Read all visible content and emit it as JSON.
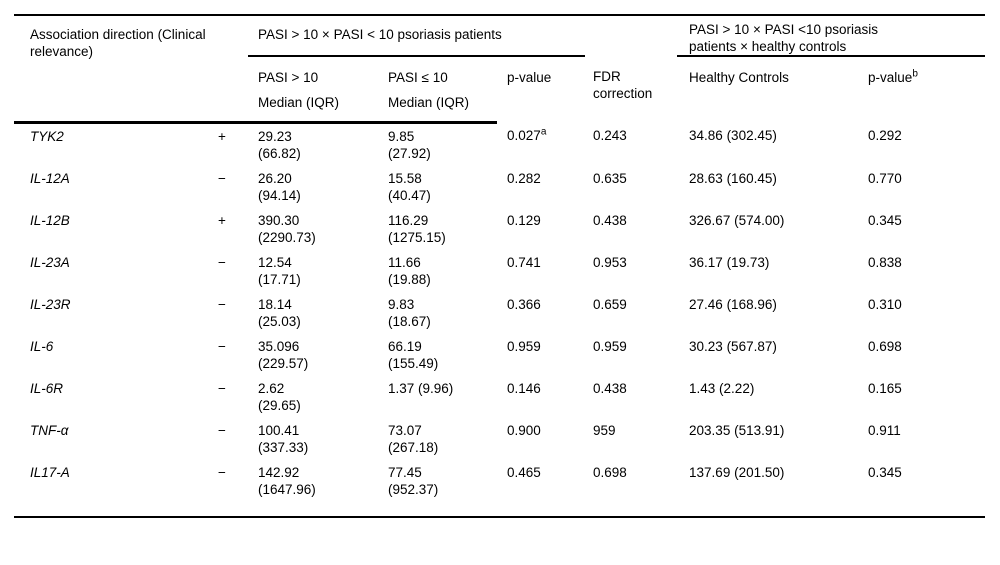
{
  "table": {
    "top_header": {
      "association": "Association direction (Clinical relevance)",
      "group_patients": "PASI > 10 × PASI < 10 psoriasis patients",
      "group_controls_l1": "PASI > 10 × PASI <10 psoriasis",
      "group_controls_l2": "patients × healthy controls"
    },
    "sub_header": {
      "pasi_gt10": "PASI > 10",
      "pasi_gt10_median": "Median (IQR)",
      "pasi_le10": "PASI ≤ 10",
      "pasi_le10_median": "Median (IQR)",
      "p_value": "p-value",
      "fdr": "FDR correction",
      "healthy_controls": "Healthy Controls",
      "p_value_b": "p-value",
      "p_value_b_sup": "b"
    },
    "rows": [
      {
        "gene": "TYK2",
        "direction": "+",
        "gt10_l1": "29.23",
        "gt10_l2": "(66.82)",
        "le10_l1": "9.85",
        "le10_l2": "(27.92)",
        "p": "0.027",
        "p_sup": "a",
        "fdr": "0.243",
        "hc": "34.86 (302.45)",
        "p_b": "0.292"
      },
      {
        "gene": "IL-12A",
        "direction": "−",
        "gt10_l1": "26.20",
        "gt10_l2": "(94.14)",
        "le10_l1": "15.58",
        "le10_l2": "(40.47)",
        "p": "0.282",
        "p_sup": "",
        "fdr": "0.635",
        "hc": "28.63 (160.45)",
        "p_b": "0.770"
      },
      {
        "gene": "IL-12B",
        "direction": "+",
        "gt10_l1": "390.30",
        "gt10_l2": "(2290.73)",
        "le10_l1": "116.29",
        "le10_l2": "(1275.15)",
        "p": "0.129",
        "p_sup": "",
        "fdr": "0.438",
        "hc": "326.67 (574.00)",
        "p_b": "0.345"
      },
      {
        "gene": "IL-23A",
        "direction": "−",
        "gt10_l1": "12.54",
        "gt10_l2": "(17.71)",
        "le10_l1": "11.66",
        "le10_l2": "(19.88)",
        "p": "0.741",
        "p_sup": "",
        "fdr": "0.953",
        "hc": "36.17 (19.73)",
        "p_b": "0.838"
      },
      {
        "gene": "IL-23R",
        "direction": "−",
        "gt10_l1": "18.14",
        "gt10_l2": "(25.03)",
        "le10_l1": "9.83",
        "le10_l2": "(18.67)",
        "p": "0.366",
        "p_sup": "",
        "fdr": "0.659",
        "hc": "27.46 (168.96)",
        "p_b": "0.310"
      },
      {
        "gene": "IL-6",
        "direction": "−",
        "gt10_l1": "35.096",
        "gt10_l2": "(229.57)",
        "le10_l1": "66.19",
        "le10_l2": "(155.49)",
        "p": "0.959",
        "p_sup": "",
        "fdr": "0.959",
        "hc": "30.23 (567.87)",
        "p_b": "0.698"
      },
      {
        "gene": "IL-6R",
        "direction": "−",
        "gt10_l1": "2.62",
        "gt10_l2": "(29.65)",
        "le10_l1": "1.37 (9.96)",
        "le10_l2": "",
        "p": "0.146",
        "p_sup": "",
        "fdr": "0.438",
        "hc": "1.43 (2.22)",
        "p_b": "0.165"
      },
      {
        "gene": "TNF-α",
        "direction": "−",
        "gt10_l1": "100.41",
        "gt10_l2": "(337.33)",
        "le10_l1": "73.07",
        "le10_l2": "(267.18)",
        "p": "0.900",
        "p_sup": "",
        "fdr": "959",
        "hc": "203.35 (513.91)",
        "p_b": "0.911"
      },
      {
        "gene": "IL17-A",
        "direction": "−",
        "gt10_l1": "142.92",
        "gt10_l2": "(1647.96)",
        "le10_l1": "77.45",
        "le10_l2": "(952.37)",
        "p": "0.465",
        "p_sup": "",
        "fdr": "0.698",
        "hc": "137.69 (201.50)",
        "p_b": "0.345"
      }
    ]
  }
}
